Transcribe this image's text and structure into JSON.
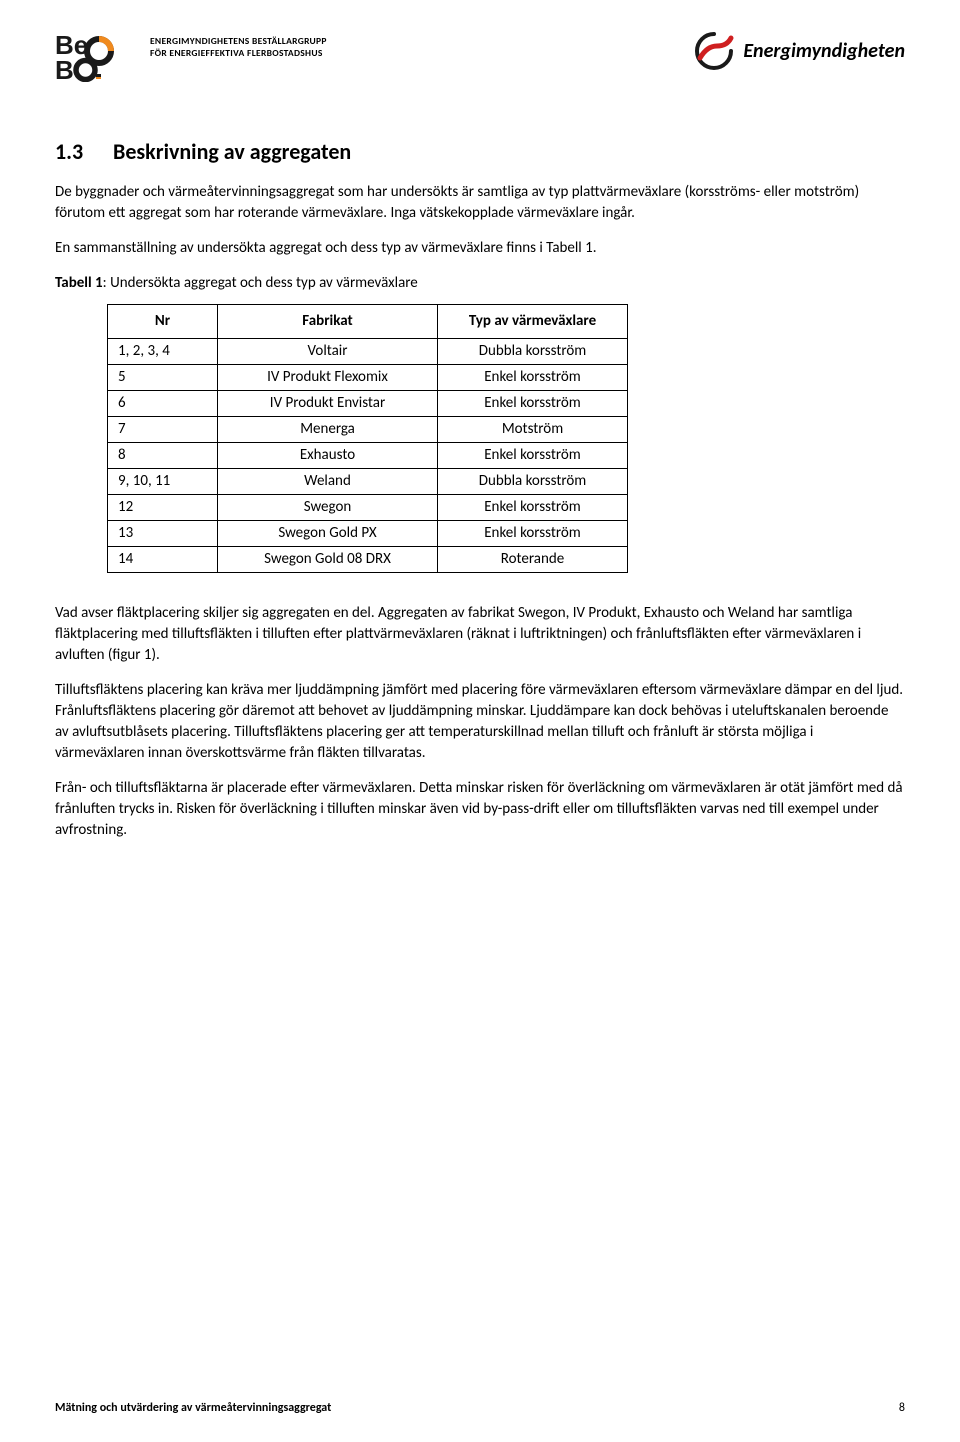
{
  "header": {
    "bebo_subtitle_1": "ENERGIMYNDIGHETENS BESTÄLLARGRUPP",
    "bebo_subtitle_2": "FÖR ENERGIEFFEKTIVA FLERBOSTADSHUS",
    "energi_text": "Energimyndigheten",
    "colors": {
      "bebo_black": "#1a1a1a",
      "bebo_orange": "#f08a1e",
      "energi_red": "#cf1f20",
      "energi_dark": "#1a1a1a"
    }
  },
  "section": {
    "number": "1.3",
    "title": "Beskrivning av aggregaten"
  },
  "paragraphs": {
    "p1": "De byggnader och värmeåtervinningsaggregat som har undersökts är samtliga av typ plattvärmeväxlare (korsströms- eller motström) förutom ett aggregat som har roterande värmeväxlare. Inga vätskekopplade värmeväxlare ingår.",
    "p2": "En sammanställning av undersökta aggregat och dess typ av värmeväxlare finns i Tabell 1.",
    "p3": "Vad avser fläktplacering skiljer sig aggregaten en del. Aggregaten av fabrikat Swegon, IV Produkt, Exhausto och Weland har samtliga fläktplacering med tilluftsfläkten i tilluften efter plattvärmeväxlaren (räknat i luftriktningen) och frånluftsfläkten efter värmeväxlaren i avluften (figur 1).",
    "p4": "Tilluftsfläktens placering kan kräva mer ljuddämpning jämfört med placering före värmeväxlaren eftersom värmeväxlare dämpar en del ljud. Frånluftsfläktens placering gör däremot att behovet av ljuddämpning minskar. Ljuddämpare kan dock behövas i uteluftskanalen beroende av avluftsutblåsets placering.  Tilluftsfläktens placering ger att temperaturskillnad mellan tilluft och frånluft är största möjliga i värmeväxlaren innan överskottsvärme från fläkten tillvaratas.",
    "p5": "Från- och tilluftsfläktarna är placerade efter värmeväxlaren. Detta minskar risken för överläckning om värmeväxlaren är otät jämfört med då frånluften trycks in.  Risken för överläckning i tilluften minskar även vid by-pass-drift eller om tilluftsfläkten varvas ned till exempel under avfrostning."
  },
  "table": {
    "caption_bold": "Tabell 1",
    "caption_rest": ": Undersökta aggregat och dess typ av värmeväxlare",
    "columns": [
      "Nr",
      "Fabrikat",
      "Typ av värmeväxlare"
    ],
    "rows": [
      [
        "1, 2, 3, 4",
        "Voltair",
        "Dubbla korsström"
      ],
      [
        "5",
        "IV Produkt Flexomix",
        "Enkel korsström"
      ],
      [
        "6",
        "IV Produkt Envistar",
        "Enkel korsström"
      ],
      [
        "7",
        "Menerga",
        "Motström"
      ],
      [
        "8",
        "Exhausto",
        "Enkel korsström"
      ],
      [
        "9, 10, 11",
        "Weland",
        "Dubbla korsström"
      ],
      [
        "12",
        "Swegon",
        "Enkel korsström"
      ],
      [
        "13",
        "Swegon Gold PX",
        "Enkel korsström"
      ],
      [
        "14",
        "Swegon Gold 08 DRX",
        "Roterande"
      ]
    ]
  },
  "footer": {
    "title": "Mätning och utvärdering av värmeåtervinningsaggregat",
    "page": "8"
  }
}
